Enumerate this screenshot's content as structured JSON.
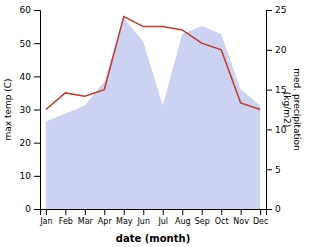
{
  "chart_data": {
    "type": "line",
    "categories": [
      "Jan",
      "Feb",
      "Mar",
      "Apr",
      "May",
      "Jun",
      "Jul",
      "Aug",
      "Sep",
      "Oct",
      "Nov",
      "Dec"
    ],
    "series": [
      {
        "type": "area",
        "axis": "y2",
        "color": "#aab4e8",
        "values": [
          11,
          12,
          13,
          16,
          24,
          21,
          13,
          22,
          23,
          22,
          15,
          13
        ]
      },
      {
        "type": "line",
        "color": "#c0392b",
        "values": [
          30,
          35,
          34,
          36,
          58,
          55,
          55,
          54,
          50,
          48,
          32,
          30
        ]
      }
    ],
    "xlabel": "date (month)",
    "ylabel": "max temp (C)",
    "y2label": "med. precipitation\n(kg/m2)",
    "ylim": [
      0,
      60
    ],
    "yticks": [
      0,
      10,
      20,
      30,
      40,
      50,
      60
    ],
    "y2lim": [
      0,
      25
    ],
    "y2ticks": [
      0,
      5,
      10,
      15,
      20,
      25
    ],
    "grid": false
  }
}
